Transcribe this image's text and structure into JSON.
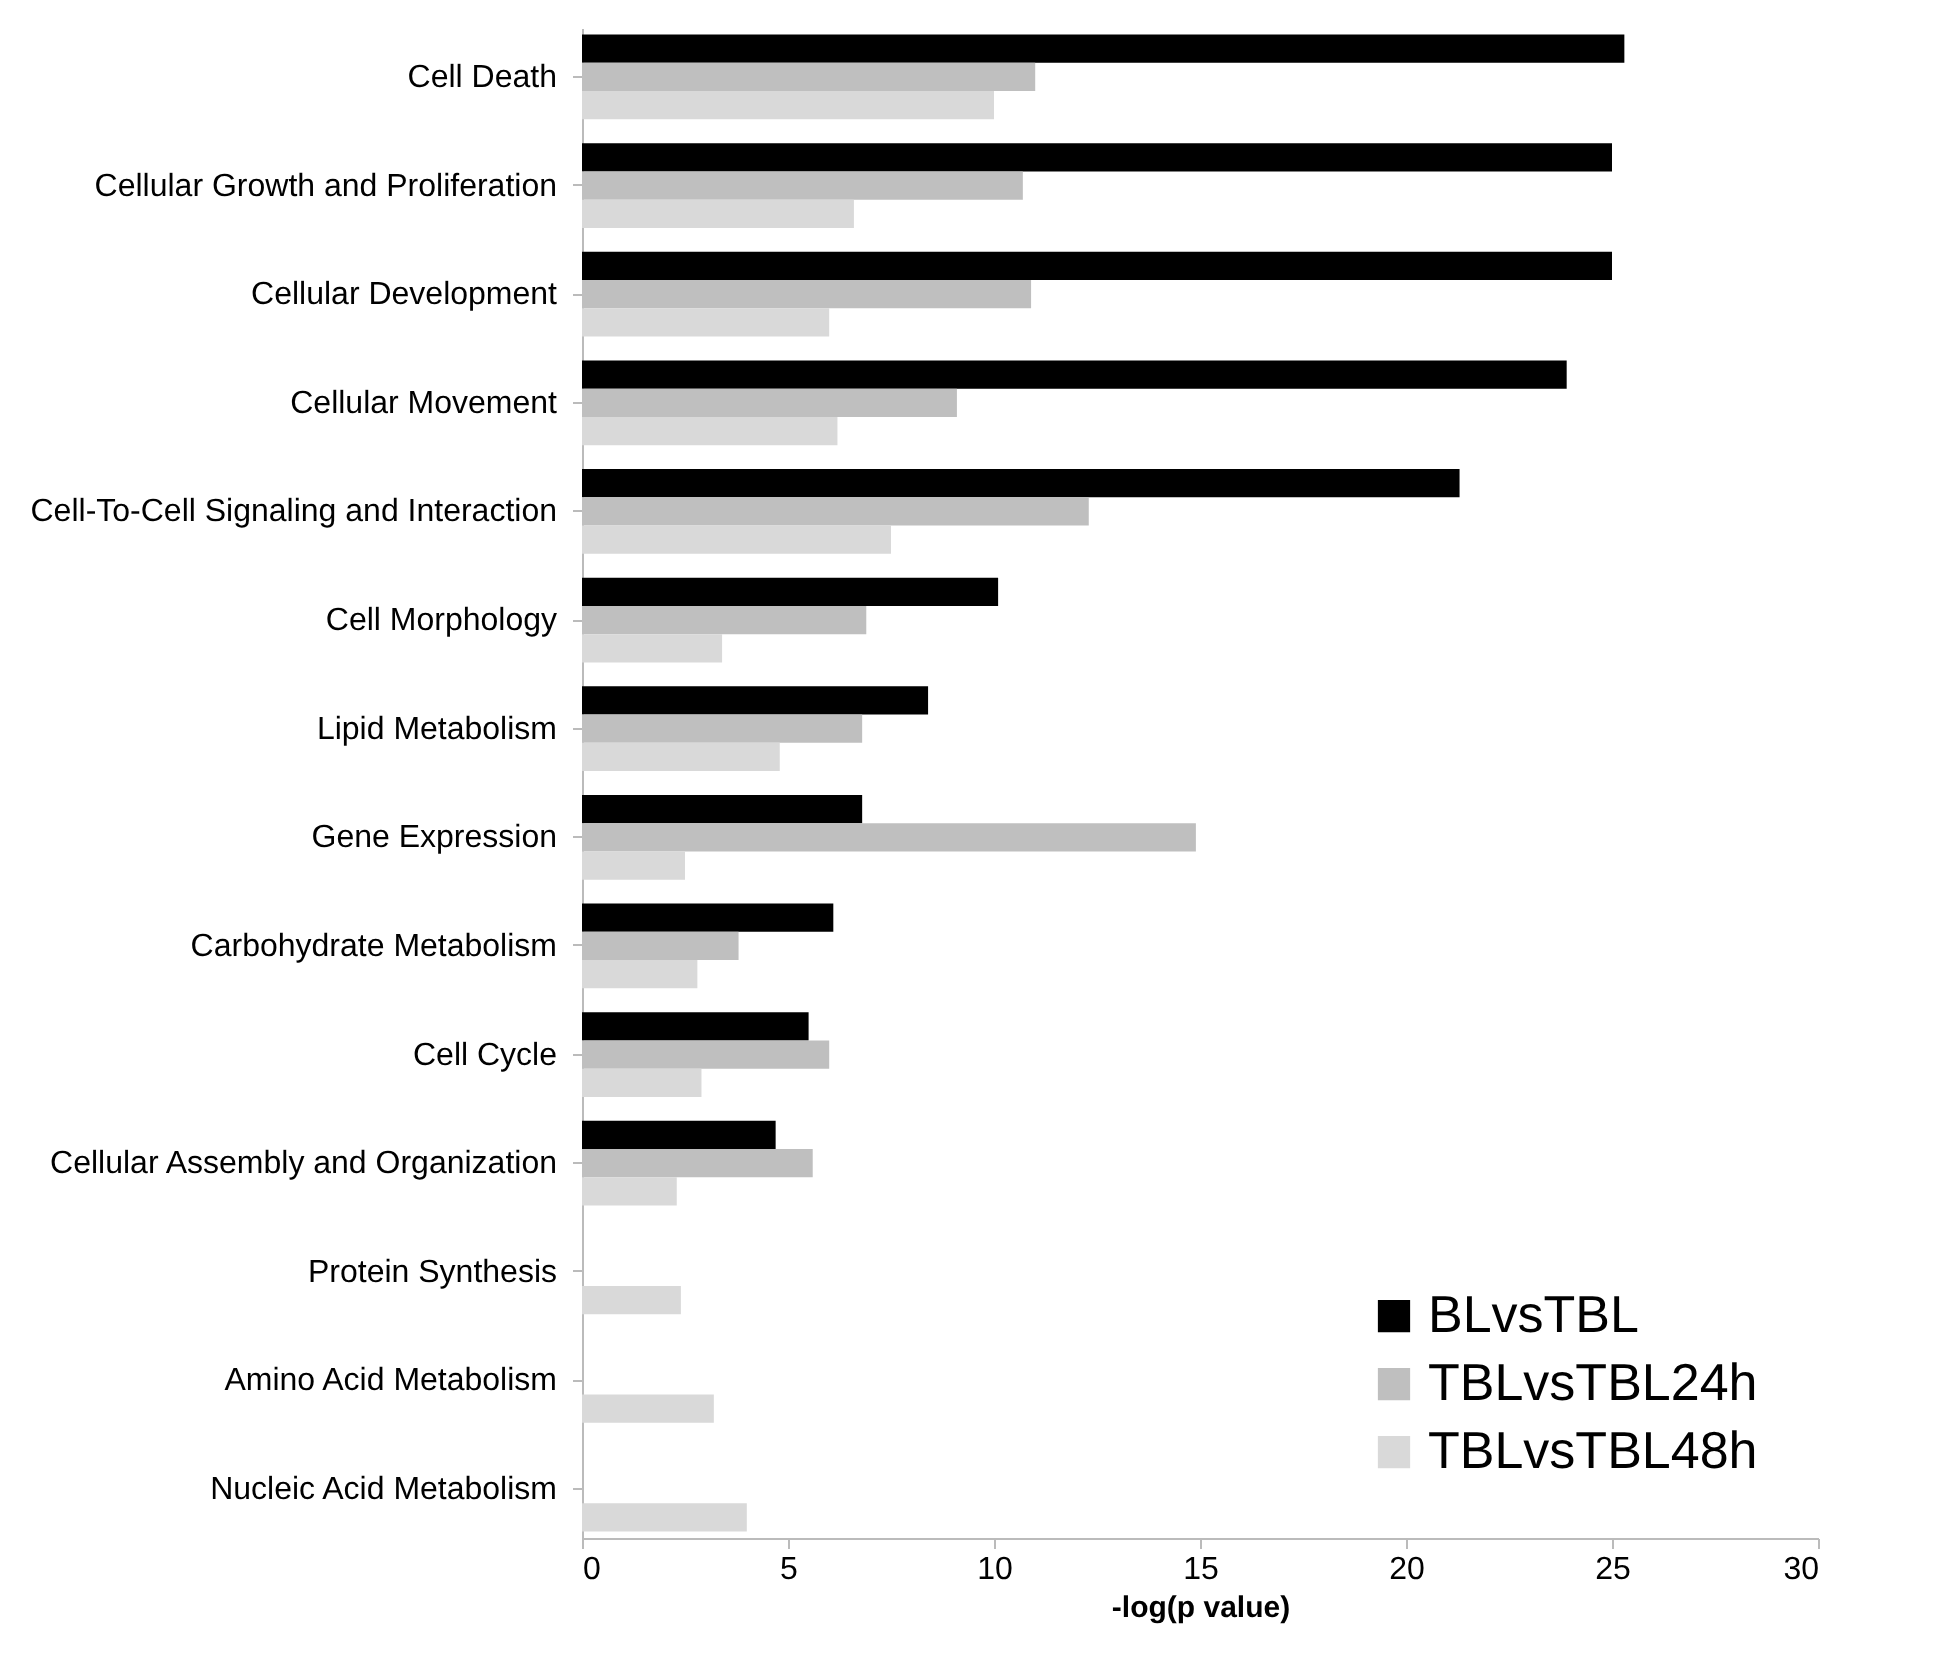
{
  "chart_data": {
    "type": "bar",
    "orientation": "horizontal",
    "xlabel": "-log(p value)",
    "categories": [
      "Cell Death",
      "Cellular Growth and Proliferation",
      "Cellular Development",
      "Cellular Movement",
      "Cell-To-Cell Signaling and Interaction",
      "Cell Morphology",
      "Lipid Metabolism",
      "Gene Expression",
      "Carbohydrate Metabolism",
      "Cell Cycle",
      "Cellular Assembly and Organization",
      "Protein Synthesis",
      "Amino Acid Metabolism",
      "Nucleic Acid Metabolism"
    ],
    "series": [
      {
        "name": "BLvsTBL",
        "color": "#000000",
        "values": [
          25.3,
          25.0,
          25.0,
          23.9,
          21.3,
          10.1,
          8.4,
          6.8,
          6.1,
          5.5,
          4.7,
          null,
          null,
          null
        ]
      },
      {
        "name": "TBLvsTBL24h",
        "color": "#bfbfbf",
        "values": [
          11.0,
          10.7,
          10.9,
          9.1,
          12.3,
          6.9,
          6.8,
          14.9,
          3.8,
          6.0,
          5.6,
          null,
          null,
          null
        ]
      },
      {
        "name": "TBLvsTBL48h",
        "color": "#d9d9d9",
        "values": [
          10.0,
          6.6,
          6.0,
          6.2,
          7.5,
          3.4,
          4.8,
          2.5,
          2.8,
          2.9,
          2.3,
          2.4,
          3.2,
          4.0
        ]
      }
    ],
    "xlim": [
      0,
      30
    ],
    "xticks": [
      0,
      5,
      10,
      15,
      20,
      25,
      30
    ],
    "legend": "bottom right"
  }
}
